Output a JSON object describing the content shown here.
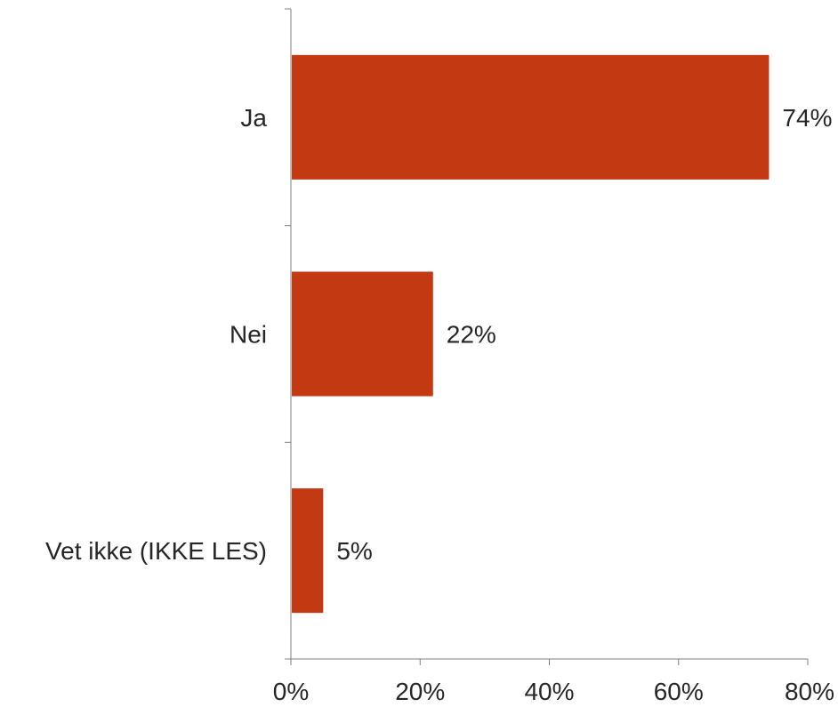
{
  "chart_data": {
    "type": "bar",
    "orientation": "horizontal",
    "categories": [
      "Ja",
      "Nei",
      "Vet ikke (IKKE LES)"
    ],
    "values": [
      74,
      22,
      5
    ],
    "value_labels": [
      "74%",
      "22%",
      "5%"
    ],
    "xlim": [
      0,
      80
    ],
    "xticks": [
      0,
      20,
      40,
      60,
      80
    ],
    "xtick_labels": [
      "0%",
      "20%",
      "40%",
      "60%",
      "80%"
    ],
    "title": "",
    "xlabel": "",
    "ylabel": "",
    "grid": false,
    "legend": "none",
    "bar_color": "#C33A12"
  }
}
